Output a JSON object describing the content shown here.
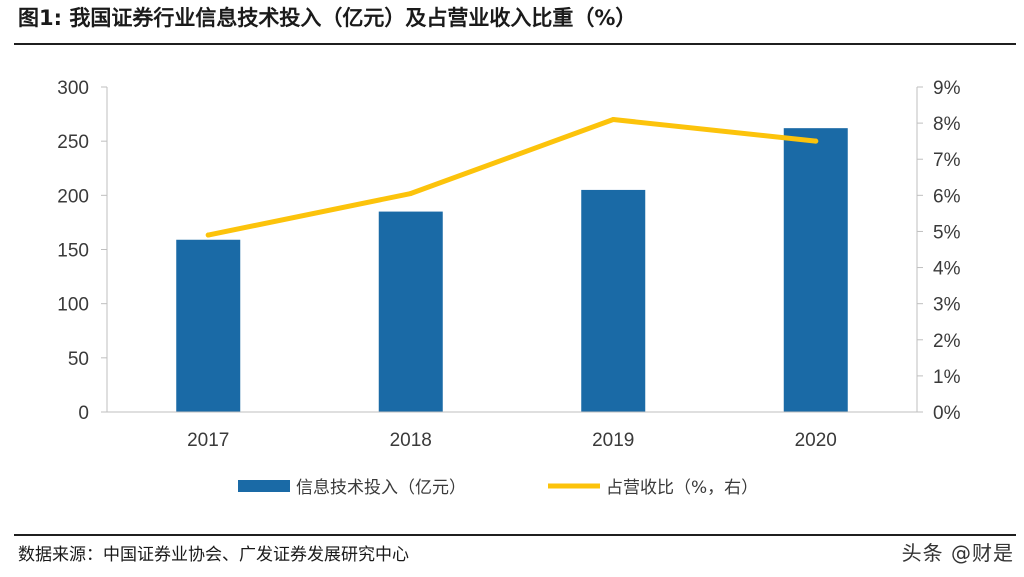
{
  "figure": {
    "title": "图1:  我国证券行业信息技术投入（亿元）及占营业收入比重（%）"
  },
  "footer": {
    "source": "数据来源：中国证券业协会、广发证券发展研究中心",
    "watermark": "头条 @财是"
  },
  "colors": {
    "bar": "#1a6aa6",
    "line": "#fcc30b",
    "axis": "#bfbfbf"
  },
  "chart_data": {
    "type": "bar",
    "categories": [
      "2017",
      "2018",
      "2019",
      "2020"
    ],
    "series": [
      {
        "name": "信息技术投入（亿元）",
        "type": "bar",
        "axis": "left",
        "values": [
          159,
          185,
          205,
          262
        ]
      },
      {
        "name": "占营收比（%，右）",
        "type": "line",
        "axis": "right",
        "values": [
          4.9,
          6.05,
          8.1,
          7.5
        ]
      }
    ],
    "y_left": {
      "ylim": [
        0,
        300
      ],
      "ticks": [
        "0",
        "50",
        "100",
        "150",
        "200",
        "250",
        "300"
      ]
    },
    "y_right": {
      "ylim": [
        0,
        9
      ],
      "ticks": [
        "0%",
        "1%",
        "2%",
        "3%",
        "4%",
        "5%",
        "6%",
        "7%",
        "8%",
        "9%"
      ]
    },
    "legend_position": "bottom",
    "grid": false
  }
}
